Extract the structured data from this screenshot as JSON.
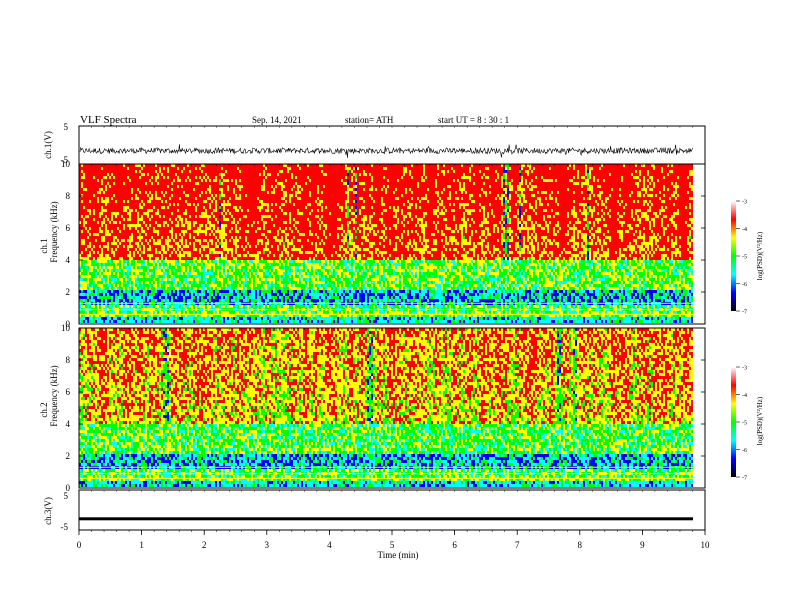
{
  "header": {
    "title": "VLF  Spectra",
    "date": "Sep. 14, 2021",
    "station": "station= ATH",
    "start": "start  UT  =   8  : 30 : 1"
  },
  "colorscale": {
    "stops": [
      "#000000",
      "#0000ff",
      "#00ffff",
      "#00ff00",
      "#ffff00",
      "#ff0000",
      "#ffffff"
    ]
  },
  "chart_data": [
    {
      "type": "line",
      "panel": "ch1-waveform",
      "ylabel": "ch.1(V)",
      "yticks": [
        "5",
        "-5"
      ],
      "ylim": [
        -5,
        5
      ],
      "description_values": {
        "xlim": [
          0,
          9.8
        ],
        "baseline_v": -1.5,
        "amplitude_v": 1.5
      }
    },
    {
      "type": "heatmap",
      "panel": "ch1-spectrogram",
      "ylabel_top": "ch.1",
      "ylabel": "Frequency  (kHz)",
      "yticks": [
        "0",
        "2",
        "4",
        "6",
        "8",
        "10"
      ],
      "ylim": [
        0,
        10
      ],
      "xlim": [
        0,
        9.8
      ],
      "colorbar": {
        "label": "log(PSD)(V²/Hz)",
        "ticks": [
          "-3",
          "-4",
          "-5",
          "-6",
          "-7"
        ],
        "range": [
          -7,
          -3
        ]
      }
    },
    {
      "type": "heatmap",
      "panel": "ch2-spectrogram",
      "ylabel_top": "ch.2",
      "ylabel": "Frequency  (kHz)",
      "yticks": [
        "0",
        "2",
        "4",
        "6",
        "8",
        "10"
      ],
      "ylim": [
        0,
        10
      ],
      "xlim": [
        0,
        9.8
      ],
      "colorbar": {
        "label": "log(PSD)(V²/Hz)",
        "ticks": [
          "-3",
          "-4",
          "-5",
          "-6",
          "-7"
        ],
        "range": [
          -7,
          -3
        ]
      }
    },
    {
      "type": "line",
      "panel": "ch3-waveform",
      "ylabel": "ch.3(V)",
      "yticks": [
        "5",
        "-5"
      ],
      "ylim": [
        -5,
        5
      ],
      "description_values": {
        "xlim": [
          0,
          9.8
        ],
        "level_v": -2.2
      }
    }
  ],
  "xaxis": {
    "label": "Time  (min)",
    "ticks": [
      "0",
      "1",
      "2",
      "3",
      "4",
      "5",
      "6",
      "7",
      "8",
      "9",
      "10"
    ],
    "range": [
      0,
      10
    ]
  }
}
